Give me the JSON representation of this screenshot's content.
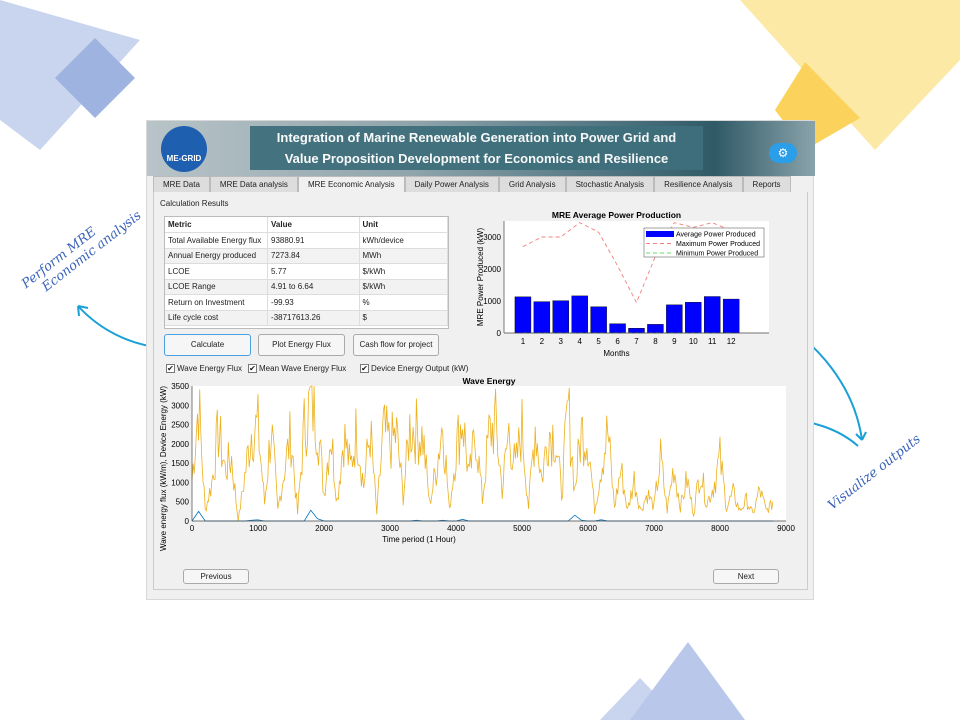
{
  "header": {
    "logo_text": "ME-GRID",
    "title_line1": "Integration of Marine Renewable Generation into Power Grid and",
    "title_line2": "Value Proposition Development for Economics and Resilience",
    "settings_icon": "cloud-gear-icon"
  },
  "tabs": [
    {
      "label": "MRE Data"
    },
    {
      "label": "MRE Data analysis"
    },
    {
      "label": "MRE Economic Analysis",
      "active": true
    },
    {
      "label": "Daily Power Analysis"
    },
    {
      "label": "Grid Analysis"
    },
    {
      "label": "Stochastic Analysis"
    },
    {
      "label": "Resilience Analysis"
    },
    {
      "label": "Reports"
    }
  ],
  "results": {
    "title": "Calculation Results",
    "columns": [
      "Metric",
      "Value",
      "Unit"
    ],
    "rows": [
      [
        "Total Available Energy flux",
        "93880.91",
        "kWh/device"
      ],
      [
        "Annual Energy produced",
        "7273.84",
        "MWh"
      ],
      [
        "LCOE",
        "5.77",
        "$/kWh"
      ],
      [
        "LCOE Range",
        "4.91 to 6.64",
        "$/kWh"
      ],
      [
        "Return on Investment",
        "-99.93",
        "%"
      ],
      [
        "Life cycle cost",
        "-38717613.26",
        "$"
      ]
    ]
  },
  "buttons": {
    "calculate": "Calculate",
    "plot_flux": "Plot Energy Flux",
    "cash_flow": "Cash flow for project",
    "previous": "Previous",
    "next": "Next"
  },
  "checkboxes": [
    {
      "label": "Wave Energy Flux",
      "checked": true
    },
    {
      "label": "Mean Wave Energy Flux",
      "checked": true
    },
    {
      "label": "Device Energy Output (kW)",
      "checked": true
    }
  ],
  "annotations": {
    "left_line1": "Perform MRE",
    "left_line2": "Economic analysis",
    "right": "Visualize outputs"
  },
  "colors": {
    "bar": "#0000ff",
    "max_line": "#f08080",
    "min_line": "#66dd66",
    "flux": "#edb120",
    "device": "#0072bd",
    "accent": "#3a62b8"
  },
  "chart_data": [
    {
      "type": "bar",
      "title": "MRE Average Power Production",
      "xlabel": "Months",
      "ylabel": "MRE Power Produced (kW)",
      "categories": [
        "1",
        "2",
        "3",
        "4",
        "5",
        "6",
        "7",
        "8",
        "9",
        "10",
        "11",
        "12"
      ],
      "xlim": [
        0,
        14
      ],
      "ylim": [
        0,
        3500
      ],
      "yticks": [
        0,
        1000,
        2000,
        3000
      ],
      "legend_position": "top-right",
      "series": [
        {
          "name": "Average Power Produced",
          "type": "bar",
          "values": [
            1130,
            980,
            1010,
            1160,
            820,
            290,
            150,
            270,
            880,
            960,
            1140,
            1060
          ]
        },
        {
          "name": "Maximum Power Produced",
          "type": "dashed-line",
          "values": [
            2700,
            3000,
            3000,
            3450,
            3150,
            2100,
            950,
            2400,
            3450,
            3300,
            3450,
            3200
          ]
        },
        {
          "name": "Minimum Power Produced",
          "type": "dashed-line",
          "values": [
            0,
            0,
            0,
            0,
            0,
            0,
            0,
            0,
            0,
            0,
            0,
            0
          ]
        }
      ]
    },
    {
      "type": "line",
      "title": "Wave Energy",
      "xlabel": "Time period (1 Hour)",
      "ylabel": "Wave energy flux (kW/m), Device Energy (kW)",
      "xlim": [
        0,
        9000
      ],
      "ylim": [
        0,
        3500
      ],
      "xticks": [
        0,
        1000,
        2000,
        3000,
        4000,
        5000,
        6000,
        7000,
        8000,
        9000
      ],
      "yticks": [
        0,
        500,
        1000,
        1500,
        2000,
        2500,
        3000,
        3500
      ],
      "x_step": 100,
      "series": [
        {
          "name": "Wave Energy Flux",
          "values": [
            1200,
            3450,
            300,
            1100,
            2600,
            1500,
            1800,
            0,
            1300,
            2600,
            2700,
            500,
            2700,
            300,
            1500,
            2500,
            200,
            2700,
            3450,
            2900,
            800,
            2600,
            600,
            2500,
            1500,
            2700,
            1000,
            2600,
            200,
            2600,
            2200,
            2500,
            700,
            2700,
            2600,
            2400,
            500,
            1500,
            2900,
            300,
            2100,
            3000,
            1200,
            2600,
            600,
            2500,
            2800,
            900,
            2600,
            1500,
            2700,
            400,
            2800,
            1200,
            2600,
            2500,
            800,
            3300,
            900,
            2600,
            2400,
            300,
            1600,
            2600,
            400,
            1500,
            300,
            1200,
            300,
            800,
            400,
            1800,
            300,
            1600,
            400,
            1200,
            200,
            1500,
            500,
            1000,
            1800,
            400,
            800,
            300,
            600,
            200,
            900,
            300,
            500
          ]
        },
        {
          "name": "Device Energy Output (kW)",
          "values": [
            0,
            250,
            0,
            0,
            0,
            0,
            0,
            0,
            0,
            20,
            30,
            0,
            0,
            0,
            0,
            0,
            0,
            0,
            280,
            60,
            0,
            0,
            0,
            0,
            0,
            0,
            0,
            0,
            0,
            0,
            0,
            0,
            0,
            0,
            20,
            0,
            0,
            0,
            20,
            0,
            0,
            40,
            0,
            0,
            0,
            0,
            0,
            0,
            0,
            0,
            0,
            0,
            0,
            0,
            0,
            0,
            0,
            0,
            150,
            20,
            0,
            0,
            30,
            0,
            0,
            0,
            0,
            0,
            0,
            0,
            0,
            0,
            0,
            0,
            0,
            0,
            0,
            0,
            0,
            0,
            0,
            0,
            0,
            0,
            0,
            0,
            0,
            0,
            0
          ]
        }
      ]
    }
  ]
}
